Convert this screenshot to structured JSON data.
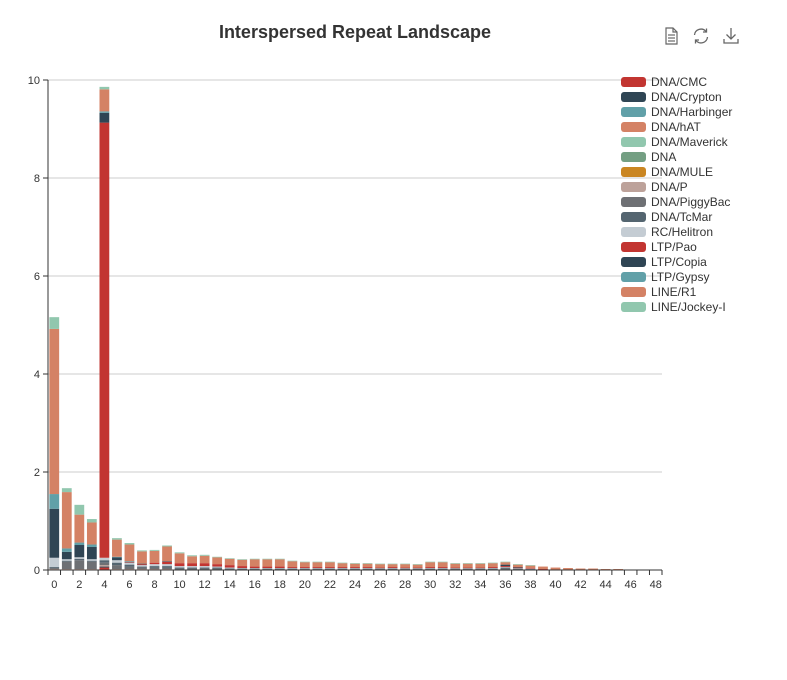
{
  "chart_data": {
    "type": "bar",
    "stacked": true,
    "title": "Interspersed Repeat Landscape",
    "xlabel": "",
    "ylabel": "",
    "x": [
      0,
      1,
      2,
      3,
      4,
      5,
      6,
      7,
      8,
      9,
      10,
      11,
      12,
      13,
      14,
      15,
      16,
      17,
      18,
      19,
      20,
      21,
      22,
      23,
      24,
      25,
      26,
      27,
      28,
      29,
      30,
      31,
      32,
      33,
      34,
      35,
      36,
      37,
      38,
      39,
      40,
      41,
      42,
      43,
      44,
      45,
      46,
      47,
      48
    ],
    "xticks": [
      "0",
      "2",
      "4",
      "6",
      "8",
      "10",
      "12",
      "14",
      "16",
      "18",
      "20",
      "22",
      "24",
      "26",
      "28",
      "30",
      "32",
      "34",
      "36",
      "38",
      "40",
      "42",
      "44",
      "46",
      "48"
    ],
    "ylim": [
      0,
      10
    ],
    "yticks": [
      "0",
      "2",
      "4",
      "6",
      "8",
      "10"
    ],
    "grid": true,
    "legend_position": "right",
    "series": [
      {
        "name": "DNA/CMC",
        "color": "#c23531",
        "values": [
          0,
          0,
          0,
          0,
          0.05,
          0,
          0,
          0,
          0,
          0,
          0,
          0,
          0,
          0,
          0,
          0,
          0,
          0,
          0,
          0,
          0,
          0,
          0,
          0,
          0,
          0,
          0,
          0,
          0,
          0,
          0,
          0,
          0,
          0,
          0,
          0,
          0,
          0,
          0,
          0,
          0,
          0,
          0,
          0,
          0,
          0,
          0,
          0,
          0
        ]
      },
      {
        "name": "DNA/Crypton",
        "color": "#2f4554",
        "values": [
          0,
          0,
          0,
          0,
          0.02,
          0,
          0,
          0,
          0,
          0,
          0,
          0,
          0,
          0,
          0,
          0,
          0,
          0,
          0,
          0,
          0,
          0,
          0,
          0,
          0,
          0,
          0,
          0,
          0,
          0,
          0,
          0,
          0,
          0,
          0,
          0,
          0,
          0,
          0,
          0,
          0,
          0,
          0,
          0,
          0,
          0,
          0,
          0,
          0
        ]
      },
      {
        "name": "DNA/Harbinger",
        "color": "#61a0a8",
        "values": [
          0,
          0,
          0,
          0,
          0,
          0,
          0,
          0,
          0,
          0,
          0,
          0,
          0,
          0,
          0,
          0,
          0,
          0,
          0,
          0,
          0,
          0,
          0,
          0,
          0,
          0,
          0,
          0,
          0,
          0,
          0,
          0,
          0,
          0,
          0,
          0,
          0,
          0,
          0,
          0,
          0,
          0,
          0,
          0,
          0,
          0,
          0,
          0,
          0
        ]
      },
      {
        "name": "DNA/hAT",
        "color": "#d48265",
        "values": [
          0,
          0,
          0,
          0,
          0,
          0,
          0,
          0,
          0,
          0,
          0,
          0,
          0,
          0,
          0,
          0,
          0,
          0,
          0,
          0,
          0,
          0,
          0,
          0,
          0,
          0,
          0,
          0,
          0,
          0,
          0,
          0,
          0,
          0,
          0,
          0,
          0,
          0,
          0,
          0,
          0,
          0,
          0,
          0,
          0,
          0,
          0,
          0,
          0
        ]
      },
      {
        "name": "DNA/Maverick",
        "color": "#91c7ae",
        "values": [
          0,
          0,
          0,
          0,
          0,
          0,
          0,
          0,
          0,
          0,
          0,
          0,
          0,
          0,
          0,
          0,
          0,
          0,
          0,
          0,
          0,
          0,
          0,
          0,
          0,
          0,
          0,
          0,
          0,
          0,
          0,
          0,
          0,
          0,
          0,
          0,
          0,
          0,
          0,
          0,
          0,
          0,
          0,
          0,
          0,
          0,
          0,
          0,
          0
        ]
      },
      {
        "name": "DNA",
        "color": "#749f83",
        "values": [
          0,
          0,
          0,
          0,
          0,
          0,
          0,
          0,
          0,
          0,
          0,
          0,
          0,
          0,
          0,
          0,
          0,
          0,
          0,
          0,
          0,
          0,
          0,
          0,
          0,
          0,
          0,
          0,
          0,
          0,
          0,
          0,
          0,
          0,
          0,
          0,
          0,
          0,
          0,
          0,
          0,
          0,
          0,
          0,
          0,
          0,
          0,
          0,
          0
        ]
      },
      {
        "name": "DNA/MULE",
        "color": "#ca8622",
        "values": [
          0,
          0,
          0,
          0,
          0,
          0,
          0,
          0,
          0,
          0,
          0,
          0,
          0,
          0,
          0,
          0,
          0,
          0,
          0,
          0,
          0,
          0,
          0,
          0,
          0,
          0,
          0,
          0,
          0,
          0,
          0,
          0,
          0,
          0,
          0,
          0,
          0,
          0,
          0,
          0,
          0,
          0,
          0,
          0,
          0,
          0,
          0,
          0,
          0
        ]
      },
      {
        "name": "DNA/P",
        "color": "#bda29a",
        "values": [
          0.02,
          0.02,
          0.02,
          0.02,
          0.03,
          0.02,
          0.02,
          0.02,
          0.02,
          0.02,
          0.01,
          0.01,
          0.01,
          0.01,
          0.01,
          0.01,
          0.01,
          0.01,
          0.01,
          0.01,
          0.01,
          0.01,
          0.01,
          0.01,
          0.01,
          0.01,
          0.01,
          0.01,
          0.01,
          0.01,
          0.01,
          0.01,
          0.01,
          0.01,
          0.01,
          0.01,
          0.01,
          0.01,
          0,
          0,
          0,
          0,
          0,
          0,
          0,
          0,
          0,
          0,
          0
        ]
      },
      {
        "name": "DNA/PiggyBac",
        "color": "#6e7074",
        "values": [
          0.02,
          0.15,
          0.18,
          0.15,
          0.05,
          0.08,
          0.05,
          0.03,
          0.03,
          0.03,
          0.02,
          0.02,
          0.02,
          0.02,
          0.01,
          0.01,
          0.01,
          0.01,
          0.01,
          0.01,
          0.01,
          0.01,
          0.01,
          0.01,
          0.01,
          0.01,
          0.01,
          0.01,
          0.01,
          0.01,
          0.01,
          0.01,
          0.01,
          0.01,
          0.01,
          0.01,
          0.02,
          0.01,
          0.01,
          0,
          0,
          0,
          0,
          0,
          0,
          0,
          0,
          0,
          0
        ]
      },
      {
        "name": "DNA/TcMar",
        "color": "#546570",
        "values": [
          0.02,
          0.02,
          0.03,
          0.02,
          0.05,
          0.05,
          0.04,
          0.02,
          0.03,
          0.03,
          0.02,
          0.02,
          0.02,
          0.02,
          0.01,
          0.01,
          0.01,
          0.01,
          0.01,
          0.01,
          0.01,
          0.01,
          0.01,
          0.01,
          0.01,
          0.01,
          0.01,
          0.01,
          0.01,
          0.01,
          0.01,
          0.01,
          0.01,
          0.01,
          0.01,
          0.01,
          0.02,
          0.01,
          0.01,
          0,
          0,
          0,
          0,
          0,
          0,
          0,
          0,
          0,
          0
        ]
      },
      {
        "name": "RC/Helitron",
        "color": "#c4ccd3",
        "values": [
          0.19,
          0.03,
          0.03,
          0.03,
          0.05,
          0.05,
          0.04,
          0.03,
          0.04,
          0.04,
          0.03,
          0.03,
          0.03,
          0.02,
          0.02,
          0.01,
          0.01,
          0.01,
          0.01,
          0.01,
          0.01,
          0.01,
          0.01,
          0.01,
          0.01,
          0.01,
          0.01,
          0.01,
          0.01,
          0.01,
          0.01,
          0.01,
          0.01,
          0.01,
          0.01,
          0.01,
          0.01,
          0.01,
          0.01,
          0.01,
          0,
          0,
          0,
          0,
          0,
          0,
          0,
          0,
          0
        ]
      },
      {
        "name": "LTP/Pao",
        "color": "#c23531",
        "values": [
          0,
          0,
          0,
          0,
          8.88,
          0,
          0.01,
          0.02,
          0.03,
          0.05,
          0.06,
          0.06,
          0.06,
          0.05,
          0.05,
          0.04,
          0.03,
          0.03,
          0.03,
          0.02,
          0.02,
          0.02,
          0.02,
          0.02,
          0.02,
          0.02,
          0.01,
          0.02,
          0.01,
          0.01,
          0.02,
          0.02,
          0.01,
          0.01,
          0.01,
          0.02,
          0.02,
          0.01,
          0.01,
          0.01,
          0.01,
          0,
          0,
          0,
          0,
          0,
          0,
          0,
          0
        ]
      },
      {
        "name": "LTP/Copia",
        "color": "#2f4554",
        "values": [
          1,
          0.15,
          0.25,
          0.25,
          0.2,
          0.06,
          0.01,
          0.01,
          0,
          0.01,
          0,
          0,
          0,
          0,
          0,
          0,
          0,
          0,
          0,
          0,
          0,
          0,
          0,
          0,
          0,
          0,
          0,
          0,
          0,
          0,
          0,
          0,
          0,
          0,
          0,
          0,
          0.03,
          0.01,
          0,
          0,
          0,
          0,
          0,
          0,
          0,
          0,
          0,
          0,
          0
        ]
      },
      {
        "name": "LTP/Gypsy",
        "color": "#61a0a8",
        "values": [
          0.3,
          0.07,
          0.05,
          0.05,
          0.03,
          0.01,
          0.01,
          0,
          0,
          0,
          0,
          0,
          0,
          0,
          0,
          0,
          0,
          0,
          0,
          0,
          0,
          0,
          0,
          0,
          0,
          0,
          0,
          0,
          0,
          0,
          0,
          0,
          0,
          0,
          0,
          0,
          0,
          0,
          0,
          0,
          0,
          0,
          0,
          0,
          0,
          0,
          0,
          0,
          0
        ]
      },
      {
        "name": "LINE/R1",
        "color": "#d48265",
        "values": [
          3.37,
          1.15,
          0.57,
          0.45,
          0.45,
          0.35,
          0.34,
          0.25,
          0.24,
          0.3,
          0.2,
          0.14,
          0.15,
          0.14,
          0.13,
          0.13,
          0.15,
          0.15,
          0.15,
          0.12,
          0.1,
          0.1,
          0.1,
          0.08,
          0.07,
          0.07,
          0.07,
          0.06,
          0.07,
          0.06,
          0.1,
          0.1,
          0.08,
          0.08,
          0.08,
          0.08,
          0.05,
          0.05,
          0.05,
          0.05,
          0.04,
          0.04,
          0.03,
          0.03,
          0.02,
          0.02,
          0.01,
          0.01,
          0
        ]
      },
      {
        "name": "LINE/Jockey-I",
        "color": "#91c7ae",
        "values": [
          0.24,
          0.08,
          0.2,
          0.07,
          0.05,
          0.03,
          0.03,
          0.02,
          0.02,
          0.02,
          0.02,
          0.02,
          0.02,
          0.01,
          0.01,
          0.01,
          0.01,
          0.01,
          0.01,
          0.01,
          0.01,
          0.01,
          0.01,
          0.01,
          0.01,
          0.01,
          0.01,
          0.01,
          0.01,
          0.01,
          0.01,
          0.01,
          0.01,
          0.01,
          0.01,
          0.01,
          0.01,
          0.01,
          0.01,
          0,
          0,
          0,
          0,
          0,
          0,
          0,
          0,
          0,
          0
        ]
      }
    ]
  },
  "toolbox": {
    "data_view_icon": "document-icon",
    "restore_icon": "refresh-icon",
    "save_icon": "download-icon"
  }
}
